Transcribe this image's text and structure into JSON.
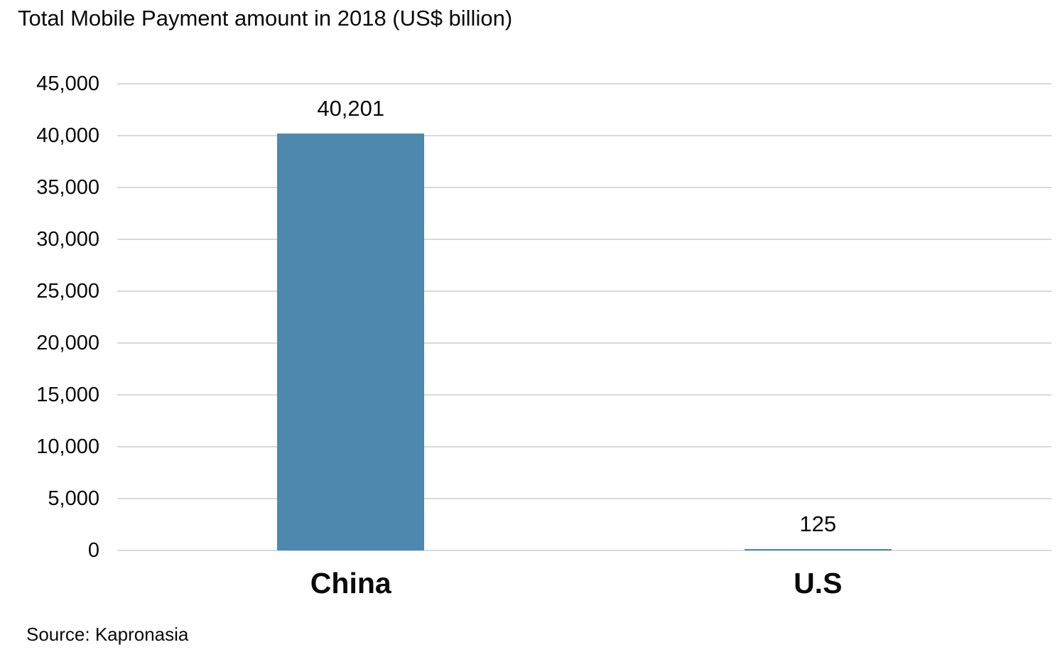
{
  "chart_data": {
    "type": "bar",
    "title": "Total Mobile Payment amount in 2018 (US$ billion)",
    "categories": [
      "China",
      "U.S"
    ],
    "values": [
      40201,
      125
    ],
    "value_labels": [
      "40,201",
      "125"
    ],
    "series_name": "Total Mobile Payment amount 2018",
    "xlabel": "",
    "ylabel": "",
    "ylim": [
      0,
      45000
    ],
    "ytick_interval": 5000,
    "yticks": [
      0,
      5000,
      10000,
      15000,
      20000,
      25000,
      30000,
      35000,
      40000,
      45000
    ],
    "ytick_labels": [
      "0",
      "5,000",
      "10,000",
      "15,000",
      "20,000",
      "25,000",
      "30,000",
      "35,000",
      "40,000",
      "45,000"
    ],
    "grid": true,
    "legend_position": "none",
    "bar_color": "#4f88ae",
    "gridline_color": "#d9d9d9",
    "source": "Source: Kapronasia"
  }
}
